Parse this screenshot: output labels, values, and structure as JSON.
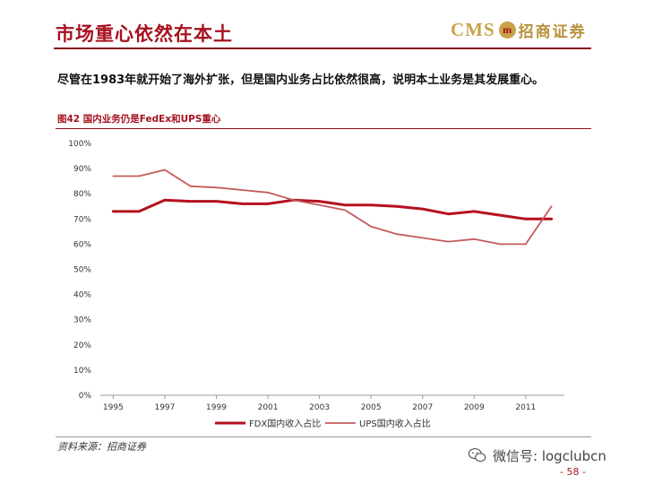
{
  "header": {
    "title": "市场重心依然在本土",
    "logo_cms": "CMS",
    "logo_mark": "m",
    "logo_cn": "招商证券"
  },
  "subtitle": "尽管在1983年就开始了海外扩张，但是国内业务占比依然很高，说明本土业务是其发展重心。",
  "figure_label": "图42 国内业务仍是FedEx和UPS重心",
  "source": "资料来源：招商证券",
  "watermark": "微信号: logclubcn",
  "page_number": "- 58 -",
  "colors": {
    "accent": "#a6121f",
    "fdx": "#b5111f",
    "ups": "#c25b5b",
    "gold": "#c9a24a"
  },
  "chart_data": {
    "type": "line",
    "x": [
      1995,
      1996,
      1997,
      1998,
      1999,
      2000,
      2001,
      2002,
      2003,
      2004,
      2005,
      2006,
      2007,
      2008,
      2009,
      2010,
      2011,
      2012
    ],
    "x_tick_labels": [
      "1995",
      "1997",
      "1999",
      "2001",
      "2003",
      "2005",
      "2007",
      "2009",
      "2011"
    ],
    "x_tick_values": [
      1995,
      1997,
      1999,
      2001,
      2003,
      2005,
      2007,
      2009,
      2011
    ],
    "y_tick_labels": [
      "0%",
      "10%",
      "20%",
      "30%",
      "40%",
      "50%",
      "60%",
      "70%",
      "80%",
      "90%",
      "100%"
    ],
    "ylim": [
      0,
      100
    ],
    "grid": false,
    "legend_position": "bottom",
    "series": [
      {
        "name": "FDX国内收入占比",
        "values": [
          73,
          73,
          77.5,
          77,
          77,
          76,
          76,
          77.5,
          77,
          75.5,
          75.5,
          75,
          74,
          72,
          73,
          71.5,
          70,
          70
        ]
      },
      {
        "name": "UPS国内收入占比",
        "values": [
          87,
          87,
          89.5,
          83,
          82.5,
          81.5,
          80.5,
          77.5,
          75.5,
          73.5,
          67,
          64,
          62.5,
          61,
          62,
          60,
          60,
          75
        ]
      }
    ]
  }
}
